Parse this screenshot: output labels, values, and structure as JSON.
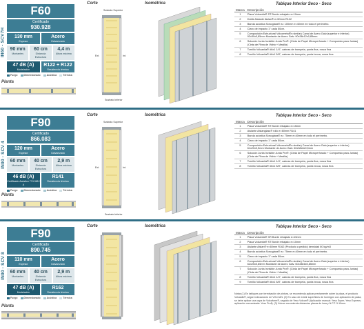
{
  "common": {
    "corte": "Corte",
    "isometrica": "Isométrica",
    "table_title": "Tabique Interior Seco - Seco",
    "col_marca": "Marca",
    "col_desc": "Descripción",
    "planta": "Planta",
    "sustrato_sup": "Sustrato Superior",
    "sustrato_inf": "Sustrato Inferior",
    "ext": "Ext.",
    "int": "Int.",
    "legend": [
      "Fuego",
      "Dimensionado",
      "Acústica",
      "Térmica"
    ],
    "legend_colors": [
      "#2f6e86",
      "#6fa6b6",
      "#a7c7d1",
      "#cfdfe4"
    ]
  },
  "sections": [
    {
      "code": "IN60 - SCV7H",
      "rating": "F60",
      "cert_label": "Certificado",
      "cert_num": "930.928",
      "r1": [
        {
          "v": "130 mm",
          "s": "Espesor"
        },
        {
          "v": "Acero",
          "s": "Galvanizado"
        }
      ],
      "r2": [
        {
          "v": "90 mm",
          "s": "Montantes"
        },
        {
          "v": "60 cm",
          "s": "Distancia Estructura"
        },
        {
          "v": "4,4 m",
          "s": "Altura máxima"
        }
      ],
      "r3": [
        {
          "v": "47 dB (A)",
          "s": "Modelación"
        },
        {
          "v": "R122 + R122",
          "s": "Resistencia térmica"
        }
      ],
      "rows": [
        [
          "1",
          "Placa Volcanita® ST Borde rebajado e=10mm"
        ],
        [
          "2",
          "Doble Aislante Aislan® e=50mm R122"
        ],
        [
          "3",
          "Banda acústica Sonoglass® a= 100mm e=40mm en todo el perímetro."
        ],
        [
          "4",
          "Clavo de impacto 1\" cada 50cm."
        ],
        [
          "5",
          "Composición Estructural Volcometal®o similar) Canal de Acero Galv.(superior e inferior) 92x30x0,85mm Montante de Acero Galv. 90x38x12x0,85mm"
        ],
        [
          "6",
          "Solución Junta Invisible Junta Pro®: (Cinta de Papel Microperforado + Compuesto para Juntas) (Cinta de Fibra de Vidrio + Masilla)"
        ],
        [
          "7",
          "Tornillo Volcanita® #6x1 1/4\", cabeza de trompeta, punta fina, rosca fina"
        ],
        [
          "8",
          "Tornillo Volcanita® #6x1 5/8\", cabeza de trompeta, punta broca, rosca fina"
        ]
      ]
    },
    {
      "code": "IN90 - SCV 4",
      "rating": "F90",
      "cert_label": "Certificado",
      "cert_num": "866.083",
      "r1": [
        {
          "v": "120 mm",
          "s": "Espesor"
        },
        {
          "v": "Acero",
          "s": "Galvanizado"
        }
      ],
      "r2": [
        {
          "v": "60 mm",
          "s": "Montantes"
        },
        {
          "v": "40 cm",
          "s": "Distancia Estructura"
        },
        {
          "v": "2,9 m",
          "s": "Altura máxima"
        }
      ],
      "r3": [
        {
          "v": "46 dB (A)",
          "s": "Certificado Acústico 774.365 / A"
        },
        {
          "v": "R141",
          "s": "Resistencia térmica"
        }
      ],
      "rows": [
        [
          "1",
          "Placa Volcanita® ST Borde rebajado e=15mm"
        ],
        [
          "2",
          "Aislante Aislanglass® rollo e=60mm R141"
        ],
        [
          "3",
          "Banda acústica Sonoglass® a= 75mm e=40mm en todo el perímetro."
        ],
        [
          "4",
          "Clavo de impacto 1\" cada 50cm."
        ],
        [
          "5",
          "Composición Estructural Volcometal®o similar) Canal de Acero Galv.(superior e inferior) 61x20x0,5mm Montante de Acero Galv. 60x38x6x0,5mm"
        ],
        [
          "6",
          "Solución Junta Invisible Junta Pro®: (Cinta de Papel Microperforado + Compuesto para Juntas) (Cinta de Fibra de Vidrio + Masilla)"
        ],
        [
          "7",
          "Tornillo Volcanita® #6x1 1/4\", cabeza de trompeta, punta fina, rosca fina"
        ],
        [
          "8",
          "Tornillo Volcanita® #6x1 5/8\", cabeza de trompeta, punta broca, rosca fina"
        ]
      ]
    },
    {
      "code": "IN90 - SCV 8",
      "rating": "F90",
      "cert_label": "Certificado",
      "cert_num": "890.745",
      "r1": [
        {
          "v": "110 mm",
          "s": "Espesor"
        },
        {
          "v": "Acero",
          "s": "Galvanizado"
        }
      ],
      "r2": [
        {
          "v": "60 mm",
          "s": "Montantes"
        },
        {
          "v": "40 cm",
          "s": "Distancia Estructura"
        },
        {
          "v": "2,9 m",
          "s": "Altura máxima"
        }
      ],
      "r3": [
        {
          "v": "47 dB (A)",
          "s": "Modelación"
        },
        {
          "v": "R162",
          "s": "Resistencia térmica"
        }
      ],
      "rows": [
        [
          "1",
          "Placa Volcanita® XR Borde rebajado e=15mm"
        ],
        [
          "2",
          "Placa Volcanita® ST Borde rebajado e=10mm"
        ],
        [
          "3",
          "Aislante Aislan® e=60mm R162 (Producto a pedido) densidad 60 kg/m3"
        ],
        [
          "4",
          "Banda acústica Sonoglass® a= 75mm e=40mm en todo el perímetro."
        ],
        [
          "5",
          "Clavo de impacto 1\" cada 50cm."
        ],
        [
          "6",
          "Composición Estructural Volcometal®o similar) Canal de Acero Galv.(superior e inferior) 62x25x0,85mm Montante de Acero Galv. 60x38x6x0,85mm"
        ],
        [
          "7",
          "Solución Junta Invisible Junta Pro®: (Cinta de Papel Microperforado + Compuesto para Juntas) (Cinta de Fibra de Vidrio + Masilla)"
        ],
        [
          "8",
          "Tornillo Volcanita® #6x1 1/4\", cabeza de trompeta, punta fina, rosca fina"
        ],
        [
          "9",
          "Tornillo Volcanita® #6x1 5/8\", cabeza de trompeta, punta broca, rosca fina"
        ]
      ]
    }
  ],
  "notes": "Notas (1) En tabiques con terminación de pintura, se recomienda aplicar previamente sobre la placa, el producto Volcasilk®, según indicaciones de VOLCAN. (2) En caso de existir superficies de hormigón con aplicación de pasta, se debe aplicar una capa de Volcaform®, seguido de Yeso Volcan® (Aplicación manual: Yeso Super, Yeso Express; aplicación mecanizada: Yeso Proll). (3) Volcan recomienda distanciar placas de losa y N.P.T. 5-10mm."
}
